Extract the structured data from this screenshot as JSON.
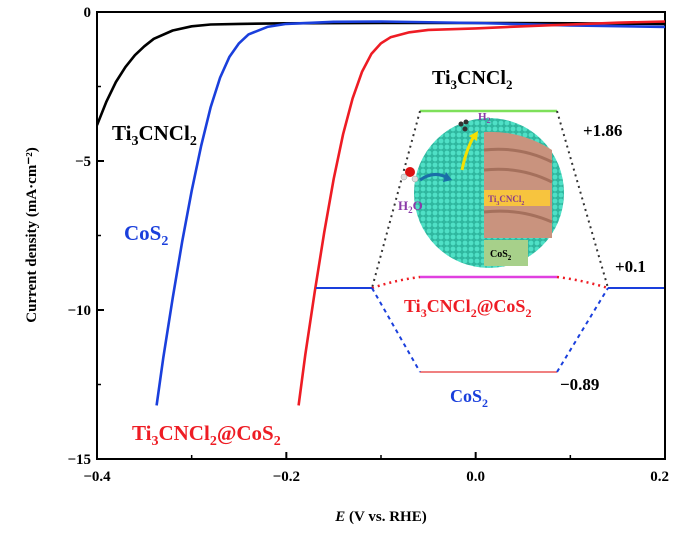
{
  "chart_data": {
    "type": "line",
    "xlabel_italic": "E",
    "xlabel_rest": " (V vs. RHE)",
    "ylabel": "Current density (mA·cm⁻²)",
    "xlim": [
      -0.4,
      0.2
    ],
    "ylim": [
      -15,
      0
    ],
    "x_ticks": [
      -0.4,
      -0.2,
      0.0,
      0.2
    ],
    "x_tick_labels": [
      "−0.4",
      "−0.2",
      "0.0",
      "0.2"
    ],
    "y_ticks": [
      0,
      -5,
      -10,
      -15
    ],
    "y_tick_labels": [
      "0",
      "−5",
      "−10",
      "−15"
    ],
    "series": [
      {
        "label_main": "Ti",
        "label_s1": "3",
        "label_mid": "CNCl",
        "label_s2": "2",
        "label_tail": "",
        "color": "#000000",
        "points": [
          [
            -0.4,
            -3.8
          ],
          [
            -0.39,
            -3.0
          ],
          [
            -0.38,
            -2.35
          ],
          [
            -0.37,
            -1.85
          ],
          [
            -0.36,
            -1.45
          ],
          [
            -0.35,
            -1.15
          ],
          [
            -0.34,
            -0.9
          ],
          [
            -0.32,
            -0.62
          ],
          [
            -0.3,
            -0.48
          ],
          [
            -0.28,
            -0.42
          ],
          [
            -0.25,
            -0.4
          ],
          [
            -0.2,
            -0.38
          ],
          [
            -0.1,
            -0.37
          ],
          [
            0.0,
            -0.37
          ],
          [
            0.1,
            -0.38
          ],
          [
            0.2,
            -0.4
          ]
        ]
      },
      {
        "label_main": "CoS",
        "label_s1": "",
        "label_mid": "",
        "label_s2": "2",
        "label_tail": "",
        "color": "#1a3fdc",
        "points": [
          [
            -0.337,
            -13.2
          ],
          [
            -0.33,
            -11.6
          ],
          [
            -0.32,
            -9.6
          ],
          [
            -0.31,
            -7.7
          ],
          [
            -0.3,
            -6.0
          ],
          [
            -0.29,
            -4.5
          ],
          [
            -0.28,
            -3.2
          ],
          [
            -0.27,
            -2.2
          ],
          [
            -0.26,
            -1.5
          ],
          [
            -0.25,
            -1.05
          ],
          [
            -0.24,
            -0.75
          ],
          [
            -0.22,
            -0.5
          ],
          [
            -0.2,
            -0.4
          ],
          [
            -0.15,
            -0.33
          ],
          [
            -0.1,
            -0.32
          ],
          [
            0.0,
            -0.37
          ],
          [
            0.1,
            -0.45
          ],
          [
            0.2,
            -0.5
          ]
        ]
      },
      {
        "label_main": "Ti",
        "label_s1": "3",
        "label_mid": "CNCl",
        "label_s2": "2",
        "label_tail": "@CoS",
        "label_s3": "2",
        "color": "#ee1c24",
        "points": [
          [
            -0.187,
            -13.2
          ],
          [
            -0.18,
            -11.5
          ],
          [
            -0.17,
            -9.4
          ],
          [
            -0.16,
            -7.4
          ],
          [
            -0.15,
            -5.6
          ],
          [
            -0.14,
            -4.1
          ],
          [
            -0.13,
            -2.9
          ],
          [
            -0.12,
            -2.0
          ],
          [
            -0.11,
            -1.4
          ],
          [
            -0.1,
            -1.05
          ],
          [
            -0.09,
            -0.85
          ],
          [
            -0.07,
            -0.68
          ],
          [
            -0.05,
            -0.6
          ],
          [
            0.0,
            -0.55
          ],
          [
            0.05,
            -0.48
          ],
          [
            0.1,
            -0.42
          ],
          [
            0.15,
            -0.36
          ],
          [
            0.2,
            -0.32
          ]
        ]
      }
    ]
  },
  "inset": {
    "title_main": "Ti",
    "title_s1": "3",
    "title_mid": "CNCl",
    "title_s2": "2",
    "level_top_value": "+1.86",
    "level_mid_value": "+0.1",
    "level_bottom_value": "−0.89",
    "mid_label_main": "Ti",
    "mid_label_s1": "3",
    "mid_label_mid": "CNCl",
    "mid_label_s2": "2",
    "mid_label_tail": "@CoS",
    "mid_label_s3": "2",
    "bottom_label_main": "CoS",
    "bottom_label_s": "2",
    "h2_main": "H",
    "h2_s": "2",
    "h2o_main": "H",
    "h2o_s": "2",
    "h2o_tail": "O",
    "sphere_inner_main": "Ti",
    "sphere_inner_s1": "3",
    "sphere_inner_mid": "CNCl",
    "sphere_inner_s2": "2",
    "sphere_core_main": "CoS",
    "sphere_core_s": "2",
    "colors": {
      "top_level": "#7ee05a",
      "mid_level": "#e040e0",
      "bottom_level": "#f08080",
      "sphere": "#3ed3b8",
      "core": "#c9937e"
    }
  }
}
